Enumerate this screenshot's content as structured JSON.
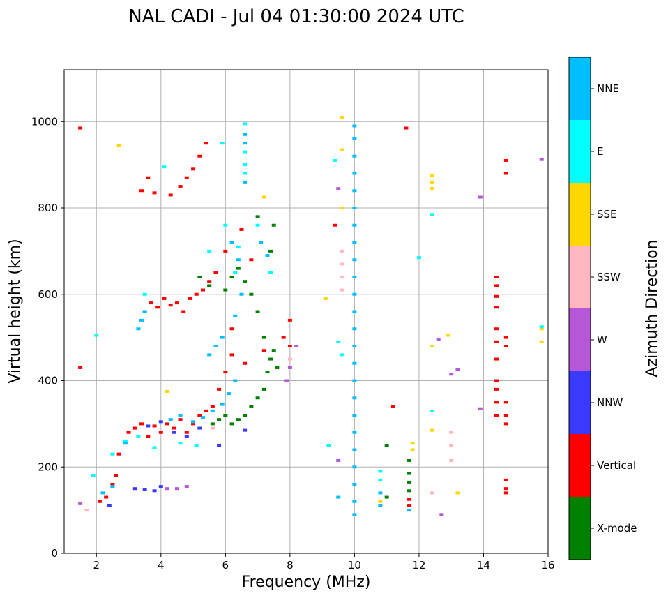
{
  "chart_data": {
    "type": "scatter",
    "title": "NAL CADI - Jul 04 01:30:00 2024 UTC",
    "xlabel": "Frequency (MHz)",
    "ylabel": "Virtual height (km)",
    "xlim": [
      1,
      16
    ],
    "ylim": [
      0,
      1120
    ],
    "x_ticks": [
      2,
      4,
      6,
      8,
      10,
      12,
      14,
      16
    ],
    "y_ticks": [
      0,
      200,
      400,
      600,
      800,
      1000
    ],
    "grid": true,
    "colorbar": {
      "label": "Azimuth Direction",
      "categories": [
        {
          "name": "X-mode",
          "color": "#008000"
        },
        {
          "name": "Vertical",
          "color": "#ff0000"
        },
        {
          "name": "NNW",
          "color": "#3a3aff"
        },
        {
          "name": "W",
          "color": "#b557d6"
        },
        {
          "name": "SSW",
          "color": "#ffb6c1"
        },
        {
          "name": "SSE",
          "color": "#ffd700"
        },
        {
          "name": "E",
          "color": "#00ffff"
        },
        {
          "name": "NNE",
          "color": "#00bfff"
        }
      ]
    },
    "series": [
      {
        "name": "X-mode",
        "points": [
          [
            6.2,
            300
          ],
          [
            6.4,
            310
          ],
          [
            6.6,
            320
          ],
          [
            6.8,
            340
          ],
          [
            7.0,
            360
          ],
          [
            7.2,
            380
          ],
          [
            7.3,
            420
          ],
          [
            7.4,
            450
          ],
          [
            7.5,
            470
          ],
          [
            7.2,
            500
          ],
          [
            7.0,
            560
          ],
          [
            6.8,
            600
          ],
          [
            6.6,
            630
          ],
          [
            6.4,
            660
          ],
          [
            6.2,
            640
          ],
          [
            6.0,
            610
          ],
          [
            6.0,
            320
          ],
          [
            5.8,
            310
          ],
          [
            5.6,
            300
          ],
          [
            7.6,
            430
          ],
          [
            7.4,
            700
          ],
          [
            7.5,
            760
          ],
          [
            7.0,
            780
          ],
          [
            5.5,
            620
          ],
          [
            5.2,
            640
          ],
          [
            11.7,
            185
          ],
          [
            11.7,
            165
          ],
          [
            11.7,
            145
          ],
          [
            11.0,
            250
          ],
          [
            11.0,
            130
          ],
          [
            11.7,
            215
          ]
        ]
      },
      {
        "name": "Vertical",
        "points": [
          [
            1.5,
            985
          ],
          [
            1.5,
            430
          ],
          [
            3.4,
            840
          ],
          [
            3.6,
            870
          ],
          [
            3.8,
            835
          ],
          [
            4.3,
            830
          ],
          [
            4.6,
            850
          ],
          [
            4.8,
            870
          ],
          [
            5.0,
            890
          ],
          [
            5.2,
            920
          ],
          [
            5.4,
            950
          ],
          [
            3.5,
            560
          ],
          [
            3.7,
            580
          ],
          [
            3.9,
            570
          ],
          [
            4.1,
            590
          ],
          [
            4.3,
            575
          ],
          [
            4.5,
            580
          ],
          [
            4.7,
            560
          ],
          [
            4.9,
            590
          ],
          [
            5.1,
            600
          ],
          [
            5.3,
            610
          ],
          [
            5.5,
            630
          ],
          [
            5.7,
            650
          ],
          [
            6.0,
            700
          ],
          [
            6.5,
            750
          ],
          [
            6.8,
            680
          ],
          [
            6.2,
            520
          ],
          [
            6.6,
            440
          ],
          [
            7.2,
            470
          ],
          [
            7.8,
            500
          ],
          [
            8.0,
            480
          ],
          [
            8.0,
            540
          ],
          [
            3.0,
            280
          ],
          [
            3.2,
            290
          ],
          [
            3.4,
            300
          ],
          [
            3.6,
            270
          ],
          [
            3.8,
            295
          ],
          [
            4.0,
            280
          ],
          [
            4.2,
            300
          ],
          [
            4.4,
            290
          ],
          [
            4.6,
            310
          ],
          [
            4.8,
            280
          ],
          [
            5.0,
            300
          ],
          [
            5.2,
            320
          ],
          [
            5.4,
            330
          ],
          [
            5.6,
            340
          ],
          [
            5.8,
            380
          ],
          [
            6.0,
            420
          ],
          [
            6.2,
            460
          ],
          [
            2.7,
            230
          ],
          [
            2.6,
            180
          ],
          [
            2.5,
            160
          ],
          [
            2.3,
            130
          ],
          [
            2.1,
            120
          ],
          [
            9.4,
            760
          ],
          [
            11.2,
            340
          ],
          [
            11.6,
            985
          ],
          [
            14.4,
            640
          ],
          [
            14.4,
            620
          ],
          [
            14.4,
            595
          ],
          [
            14.4,
            570
          ],
          [
            14.4,
            520
          ],
          [
            14.4,
            490
          ],
          [
            14.4,
            450
          ],
          [
            14.4,
            400
          ],
          [
            14.4,
            380
          ],
          [
            14.4,
            350
          ],
          [
            14.4,
            320
          ],
          [
            14.7,
            300
          ],
          [
            14.7,
            320
          ],
          [
            14.7,
            350
          ],
          [
            14.7,
            480
          ],
          [
            14.7,
            500
          ],
          [
            14.7,
            910
          ],
          [
            14.7,
            880
          ],
          [
            14.7,
            170
          ],
          [
            14.7,
            150
          ],
          [
            14.7,
            140
          ],
          [
            11.7,
            125
          ],
          [
            11.7,
            110
          ]
        ]
      },
      {
        "name": "NNW",
        "points": [
          [
            3.2,
            150
          ],
          [
            3.5,
            148
          ],
          [
            3.8,
            145
          ],
          [
            4.0,
            155
          ],
          [
            3.6,
            295
          ],
          [
            4.0,
            305
          ],
          [
            4.4,
            280
          ],
          [
            4.8,
            270
          ],
          [
            5.2,
            290
          ],
          [
            6.6,
            285
          ],
          [
            5.8,
            250
          ],
          [
            2.4,
            110
          ]
        ]
      },
      {
        "name": "W",
        "points": [
          [
            4.2,
            150
          ],
          [
            4.5,
            150
          ],
          [
            4.8,
            155
          ],
          [
            8.2,
            480
          ],
          [
            8.0,
            430
          ],
          [
            7.9,
            400
          ],
          [
            13.0,
            415
          ],
          [
            13.2,
            425
          ],
          [
            12.6,
            495
          ],
          [
            13.9,
            335
          ],
          [
            13.9,
            825
          ],
          [
            15.8,
            912
          ],
          [
            9.5,
            215
          ],
          [
            9.5,
            845
          ],
          [
            12.7,
            90
          ],
          [
            1.5,
            115
          ]
        ]
      },
      {
        "name": "SSW",
        "points": [
          [
            9.6,
            610
          ],
          [
            9.6,
            640
          ],
          [
            9.6,
            670
          ],
          [
            9.6,
            700
          ],
          [
            12.4,
            140
          ],
          [
            13.0,
            215
          ],
          [
            13.0,
            250
          ],
          [
            13.0,
            280
          ],
          [
            8.0,
            450
          ],
          [
            1.7,
            100
          ],
          [
            5.6,
            290
          ]
        ]
      },
      {
        "name": "SSE",
        "points": [
          [
            2.7,
            945
          ],
          [
            9.6,
            1010
          ],
          [
            9.6,
            935
          ],
          [
            9.6,
            800
          ],
          [
            9.1,
            590
          ],
          [
            12.4,
            875
          ],
          [
            12.4,
            860
          ],
          [
            12.4,
            845
          ],
          [
            12.4,
            480
          ],
          [
            12.4,
            285
          ],
          [
            12.9,
            505
          ],
          [
            13.2,
            140
          ],
          [
            11.8,
            255
          ],
          [
            11.8,
            240
          ],
          [
            15.8,
            490
          ],
          [
            15.8,
            520
          ],
          [
            7.2,
            825
          ],
          [
            10.8,
            120
          ],
          [
            4.2,
            375
          ]
        ]
      },
      {
        "name": "E",
        "points": [
          [
            6.6,
            995
          ],
          [
            6.6,
            930
          ],
          [
            6.6,
            900
          ],
          [
            6.6,
            880
          ],
          [
            5.9,
            950
          ],
          [
            4.1,
            895
          ],
          [
            6.0,
            760
          ],
          [
            6.4,
            710
          ],
          [
            6.3,
            650
          ],
          [
            5.5,
            700
          ],
          [
            9.4,
            910
          ],
          [
            9.5,
            490
          ],
          [
            9.2,
            250
          ],
          [
            9.6,
            460
          ],
          [
            12.4,
            330
          ],
          [
            12.4,
            785
          ],
          [
            12.0,
            685
          ],
          [
            15.8,
            525
          ],
          [
            10.8,
            190
          ],
          [
            10.8,
            170
          ],
          [
            2.0,
            505
          ],
          [
            2.5,
            230
          ],
          [
            2.9,
            260
          ],
          [
            3.3,
            270
          ],
          [
            3.8,
            245
          ],
          [
            4.6,
            255
          ],
          [
            5.1,
            250
          ],
          [
            1.9,
            180
          ],
          [
            3.5,
            600
          ],
          [
            7.0,
            760
          ],
          [
            7.4,
            650
          ]
        ]
      },
      {
        "name": "NNE",
        "points": [
          [
            10.0,
            990
          ],
          [
            10.0,
            960
          ],
          [
            10.0,
            920
          ],
          [
            10.0,
            880
          ],
          [
            10.0,
            840
          ],
          [
            10.0,
            800
          ],
          [
            10.0,
            760
          ],
          [
            10.0,
            720
          ],
          [
            10.0,
            680
          ],
          [
            10.0,
            640
          ],
          [
            10.0,
            600
          ],
          [
            10.0,
            560
          ],
          [
            10.0,
            520
          ],
          [
            10.0,
            480
          ],
          [
            10.0,
            440
          ],
          [
            10.0,
            400
          ],
          [
            10.0,
            360
          ],
          [
            10.0,
            320
          ],
          [
            10.0,
            280
          ],
          [
            10.0,
            240
          ],
          [
            10.0,
            200
          ],
          [
            10.0,
            160
          ],
          [
            10.0,
            120
          ],
          [
            10.0,
            90
          ],
          [
            6.6,
            970
          ],
          [
            6.6,
            950
          ],
          [
            6.6,
            860
          ],
          [
            6.2,
            720
          ],
          [
            6.4,
            680
          ],
          [
            5.9,
            500
          ],
          [
            5.7,
            480
          ],
          [
            5.5,
            460
          ],
          [
            6.3,
            550
          ],
          [
            6.5,
            600
          ],
          [
            3.5,
            560
          ],
          [
            3.4,
            540
          ],
          [
            3.3,
            520
          ],
          [
            4.3,
            310
          ],
          [
            4.6,
            320
          ],
          [
            5.0,
            305
          ],
          [
            5.3,
            315
          ],
          [
            5.6,
            330
          ],
          [
            5.9,
            345
          ],
          [
            6.1,
            370
          ],
          [
            6.3,
            400
          ],
          [
            2.9,
            255
          ],
          [
            2.2,
            140
          ],
          [
            2.5,
            155
          ],
          [
            9.5,
            130
          ],
          [
            10.8,
            140
          ],
          [
            10.8,
            110
          ],
          [
            11.7,
            100
          ],
          [
            7.1,
            720
          ],
          [
            7.3,
            690
          ]
        ]
      }
    ]
  }
}
